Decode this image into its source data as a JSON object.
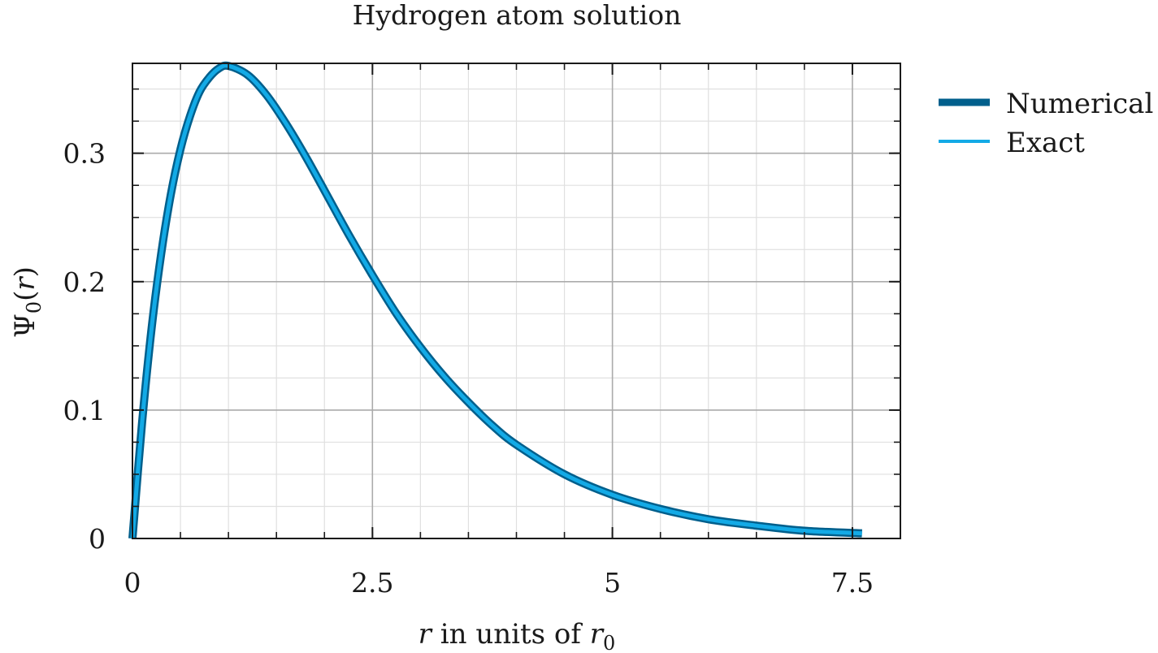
{
  "chart_data": {
    "type": "line",
    "title": "Hydrogen atom solution",
    "xlabel": {
      "var": "r",
      "middle": " in units of ",
      "base": "r",
      "sub": "0"
    },
    "ylabel": {
      "base": "Ψ",
      "sub": "0",
      "arg_open": "(",
      "arg": "r",
      "arg_close": ")"
    },
    "xlim": [
      0,
      8
    ],
    "ylim": [
      0,
      0.37
    ],
    "x_ticks": [
      {
        "value": 0,
        "label": "0"
      },
      {
        "value": 2.5,
        "label": "2.5"
      },
      {
        "value": 5,
        "label": "5"
      },
      {
        "value": 7.5,
        "label": "7.5"
      }
    ],
    "y_ticks": [
      {
        "value": 0,
        "label": "0"
      },
      {
        "value": 0.1,
        "label": "0.1"
      },
      {
        "value": 0.2,
        "label": "0.2"
      },
      {
        "value": 0.3,
        "label": "0.3"
      }
    ],
    "grid": true,
    "legend_position": "outside-right",
    "series": [
      {
        "name": "Numerical",
        "color": "#005f8c",
        "x": [
          0,
          0.1,
          0.2,
          0.3,
          0.4,
          0.5,
          0.6,
          0.7,
          0.8,
          0.9,
          1.0,
          1.2,
          1.4,
          1.6,
          1.8,
          2.0,
          2.25,
          2.5,
          2.75,
          3.0,
          3.25,
          3.5,
          3.75,
          4.0,
          4.5,
          5.0,
          5.5,
          6.0,
          6.5,
          7.0,
          7.6
        ],
        "y": [
          0,
          0.09,
          0.164,
          0.222,
          0.268,
          0.303,
          0.329,
          0.348,
          0.359,
          0.366,
          0.368,
          0.361,
          0.345,
          0.323,
          0.298,
          0.271,
          0.237,
          0.205,
          0.175,
          0.149,
          0.126,
          0.106,
          0.088,
          0.073,
          0.05,
          0.034,
          0.023,
          0.015,
          0.01,
          0.006,
          0.004
        ]
      },
      {
        "name": "Exact",
        "color": "#13aae6",
        "x": [
          0,
          0.1,
          0.2,
          0.3,
          0.4,
          0.5,
          0.6,
          0.7,
          0.8,
          0.9,
          1.0,
          1.2,
          1.4,
          1.6,
          1.8,
          2.0,
          2.25,
          2.5,
          2.75,
          3.0,
          3.25,
          3.5,
          3.75,
          4.0,
          4.5,
          5.0,
          5.5,
          6.0,
          6.5,
          7.0,
          7.6
        ],
        "y": [
          0,
          0.09,
          0.164,
          0.222,
          0.268,
          0.303,
          0.329,
          0.348,
          0.359,
          0.366,
          0.368,
          0.361,
          0.345,
          0.323,
          0.298,
          0.271,
          0.237,
          0.205,
          0.175,
          0.149,
          0.126,
          0.106,
          0.088,
          0.073,
          0.05,
          0.034,
          0.023,
          0.015,
          0.01,
          0.006,
          0.004
        ]
      }
    ]
  }
}
